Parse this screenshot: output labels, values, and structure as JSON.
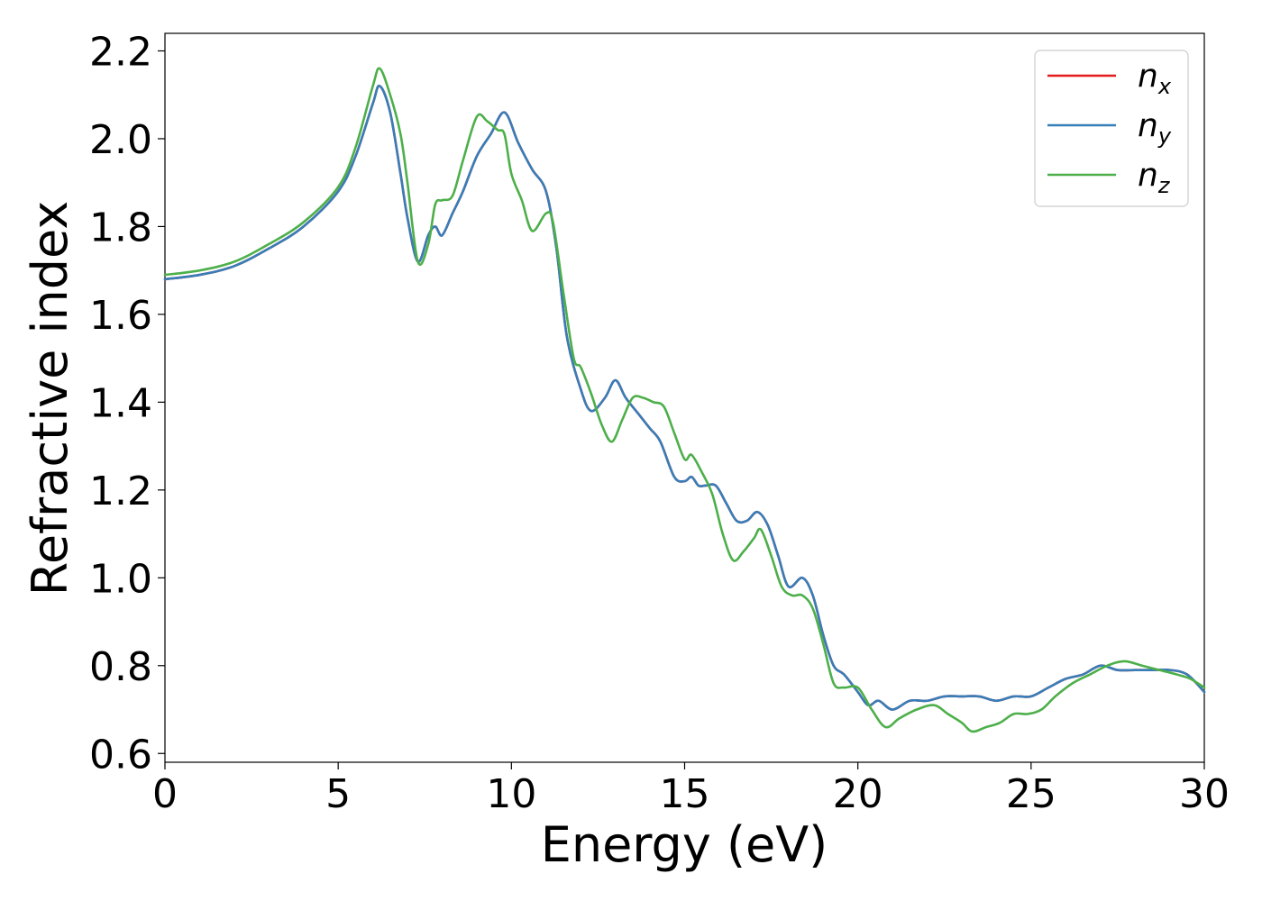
{
  "chart_data": {
    "type": "line",
    "xlabel": "Energy (eV)",
    "ylabel": "Refractive index",
    "xlim": [
      0,
      30
    ],
    "ylim": [
      0.58,
      2.24
    ],
    "xticks": [
      0,
      5,
      10,
      15,
      20,
      25,
      30
    ],
    "yticks": [
      0.6,
      0.8,
      1.0,
      1.2,
      1.4,
      1.6,
      1.8,
      2.0,
      2.2
    ],
    "xtick_labels": [
      "0",
      "5",
      "10",
      "15",
      "20",
      "25",
      "30"
    ],
    "ytick_labels": [
      "0.6",
      "0.8",
      "1.0",
      "1.2",
      "1.4",
      "1.6",
      "1.8",
      "2.0",
      "2.2"
    ],
    "grid": false,
    "legend_position": "top-right",
    "series": [
      {
        "name": "n",
        "subscript": "x",
        "color": "#e41a1c",
        "x": [
          0,
          1,
          2,
          3,
          4,
          5,
          5.5,
          6.0,
          6.2,
          6.5,
          6.8,
          7.0,
          7.3,
          7.6,
          7.8,
          8.0,
          8.3,
          8.6,
          9.0,
          9.4,
          9.8,
          10.2,
          10.6,
          11.0,
          11.3,
          11.6,
          12.0,
          12.3,
          12.7,
          13.0,
          13.3,
          13.7,
          14.0,
          14.3,
          14.7,
          15.0,
          15.2,
          15.4,
          15.6,
          15.9,
          16.2,
          16.5,
          16.8,
          17.1,
          17.4,
          17.7,
          18.0,
          18.4,
          18.7,
          19.0,
          19.3,
          19.6,
          20.0,
          20.3,
          20.6,
          21.0,
          21.5,
          22.0,
          22.5,
          23.0,
          23.5,
          24.0,
          24.5,
          25.0,
          25.5,
          26.0,
          26.5,
          27.0,
          27.5,
          28.0,
          28.5,
          29.0,
          29.5,
          30.0
        ],
        "y": [
          1.68,
          1.69,
          1.71,
          1.75,
          1.8,
          1.88,
          1.96,
          2.08,
          2.12,
          2.06,
          1.92,
          1.82,
          1.72,
          1.78,
          1.8,
          1.78,
          1.83,
          1.88,
          1.96,
          2.01,
          2.06,
          1.99,
          1.93,
          1.88,
          1.75,
          1.55,
          1.43,
          1.38,
          1.41,
          1.45,
          1.41,
          1.37,
          1.34,
          1.31,
          1.23,
          1.22,
          1.23,
          1.21,
          1.21,
          1.21,
          1.17,
          1.13,
          1.13,
          1.15,
          1.12,
          1.05,
          0.98,
          1.0,
          0.96,
          0.87,
          0.8,
          0.78,
          0.74,
          0.71,
          0.72,
          0.7,
          0.72,
          0.72,
          0.73,
          0.73,
          0.73,
          0.72,
          0.73,
          0.73,
          0.75,
          0.77,
          0.78,
          0.8,
          0.79,
          0.79,
          0.79,
          0.79,
          0.78,
          0.74
        ]
      },
      {
        "name": "n",
        "subscript": "y",
        "color": "#377eb8",
        "x": [
          0,
          1,
          2,
          3,
          4,
          5,
          5.5,
          6.0,
          6.2,
          6.5,
          6.8,
          7.0,
          7.3,
          7.6,
          7.8,
          8.0,
          8.3,
          8.6,
          9.0,
          9.4,
          9.8,
          10.2,
          10.6,
          11.0,
          11.3,
          11.6,
          12.0,
          12.3,
          12.7,
          13.0,
          13.3,
          13.7,
          14.0,
          14.3,
          14.7,
          15.0,
          15.2,
          15.4,
          15.6,
          15.9,
          16.2,
          16.5,
          16.8,
          17.1,
          17.4,
          17.7,
          18.0,
          18.4,
          18.7,
          19.0,
          19.3,
          19.6,
          20.0,
          20.3,
          20.6,
          21.0,
          21.5,
          22.0,
          22.5,
          23.0,
          23.5,
          24.0,
          24.5,
          25.0,
          25.5,
          26.0,
          26.5,
          27.0,
          27.5,
          28.0,
          28.5,
          29.0,
          29.5,
          30.0
        ],
        "y": [
          1.68,
          1.69,
          1.71,
          1.75,
          1.8,
          1.88,
          1.96,
          2.08,
          2.12,
          2.06,
          1.92,
          1.82,
          1.72,
          1.78,
          1.8,
          1.78,
          1.83,
          1.88,
          1.96,
          2.01,
          2.06,
          1.99,
          1.93,
          1.88,
          1.75,
          1.55,
          1.43,
          1.38,
          1.41,
          1.45,
          1.41,
          1.37,
          1.34,
          1.31,
          1.23,
          1.22,
          1.23,
          1.21,
          1.21,
          1.21,
          1.17,
          1.13,
          1.13,
          1.15,
          1.12,
          1.05,
          0.98,
          1.0,
          0.96,
          0.87,
          0.8,
          0.78,
          0.74,
          0.71,
          0.72,
          0.7,
          0.72,
          0.72,
          0.73,
          0.73,
          0.73,
          0.72,
          0.73,
          0.73,
          0.75,
          0.77,
          0.78,
          0.8,
          0.79,
          0.79,
          0.79,
          0.79,
          0.78,
          0.74
        ]
      },
      {
        "name": "n",
        "subscript": "z",
        "color": "#4daf4a",
        "x": [
          0,
          1,
          2,
          3,
          4,
          5,
          5.5,
          6.0,
          6.2,
          6.5,
          6.8,
          7.0,
          7.3,
          7.6,
          7.8,
          8.0,
          8.3,
          8.6,
          9.0,
          9.3,
          9.6,
          9.8,
          10.0,
          10.3,
          10.6,
          11.0,
          11.2,
          11.5,
          11.8,
          12.0,
          12.3,
          12.6,
          12.9,
          13.2,
          13.5,
          13.8,
          14.1,
          14.4,
          14.7,
          15.0,
          15.2,
          15.5,
          15.8,
          16.1,
          16.4,
          16.7,
          17.0,
          17.2,
          17.5,
          17.8,
          18.1,
          18.4,
          18.7,
          19.0,
          19.3,
          19.6,
          20.0,
          20.4,
          20.8,
          21.2,
          21.7,
          22.2,
          22.6,
          23.0,
          23.3,
          23.7,
          24.1,
          24.5,
          24.9,
          25.3,
          25.7,
          26.2,
          26.7,
          27.2,
          27.7,
          28.2,
          28.7,
          29.2,
          29.6,
          30.0
        ],
        "y": [
          1.69,
          1.7,
          1.72,
          1.76,
          1.81,
          1.89,
          1.98,
          2.12,
          2.16,
          2.1,
          2.01,
          1.9,
          1.72,
          1.76,
          1.85,
          1.86,
          1.87,
          1.95,
          2.05,
          2.04,
          2.02,
          2.01,
          1.92,
          1.86,
          1.79,
          1.83,
          1.81,
          1.65,
          1.5,
          1.48,
          1.42,
          1.35,
          1.31,
          1.36,
          1.41,
          1.41,
          1.4,
          1.39,
          1.33,
          1.27,
          1.28,
          1.24,
          1.19,
          1.1,
          1.04,
          1.06,
          1.09,
          1.11,
          1.05,
          0.98,
          0.96,
          0.96,
          0.93,
          0.85,
          0.76,
          0.75,
          0.75,
          0.7,
          0.66,
          0.68,
          0.7,
          0.71,
          0.69,
          0.67,
          0.65,
          0.66,
          0.67,
          0.69,
          0.69,
          0.7,
          0.73,
          0.76,
          0.78,
          0.8,
          0.81,
          0.8,
          0.79,
          0.78,
          0.77,
          0.75
        ]
      }
    ]
  }
}
